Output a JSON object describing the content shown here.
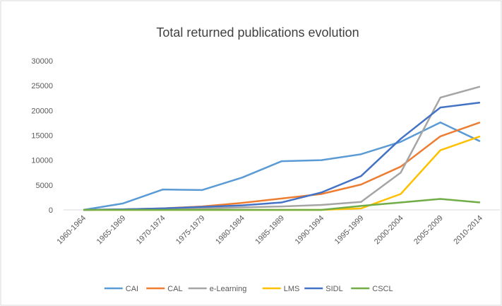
{
  "chart_data": {
    "type": "line",
    "title": "Total returned publications evolution",
    "categories": [
      "1960-1964",
      "1965-1969",
      "1970-1974",
      "1975-1979",
      "1980-1984",
      "1985-1989",
      "1990-1994",
      "1995-1999",
      "2000-2004",
      "2005-2009",
      "2010-2014"
    ],
    "series": [
      {
        "name": "CAI",
        "color": "#5b9bd5",
        "values": [
          0,
          1300,
          4100,
          4000,
          6500,
          9800,
          10000,
          11200,
          13700,
          17600,
          13800
        ]
      },
      {
        "name": "CAL",
        "color": "#ed7d31",
        "values": [
          0,
          100,
          300,
          700,
          1400,
          2300,
          3200,
          5100,
          8700,
          14800,
          17600
        ]
      },
      {
        "name": "e-Learning",
        "color": "#a5a5a5",
        "values": [
          0,
          100,
          200,
          300,
          500,
          700,
          1000,
          1600,
          7500,
          22600,
          24800
        ]
      },
      {
        "name": "LMS",
        "color": "#ffc000",
        "values": [
          0,
          0,
          0,
          0,
          0,
          0,
          0,
          300,
          3200,
          12000,
          14800
        ]
      },
      {
        "name": "SIDL",
        "color": "#4472c4",
        "values": [
          0,
          100,
          300,
          600,
          900,
          1500,
          3500,
          6800,
          14300,
          20600,
          21600
        ]
      },
      {
        "name": "CSCL",
        "color": "#70ad47",
        "values": [
          0,
          0,
          0,
          0,
          0,
          0,
          0,
          800,
          1500,
          2200,
          1500
        ]
      }
    ],
    "ylim": [
      0,
      30000
    ],
    "yticks": [
      0,
      5000,
      10000,
      15000,
      20000,
      25000,
      30000
    ],
    "grid": false,
    "legend": "bottom"
  }
}
